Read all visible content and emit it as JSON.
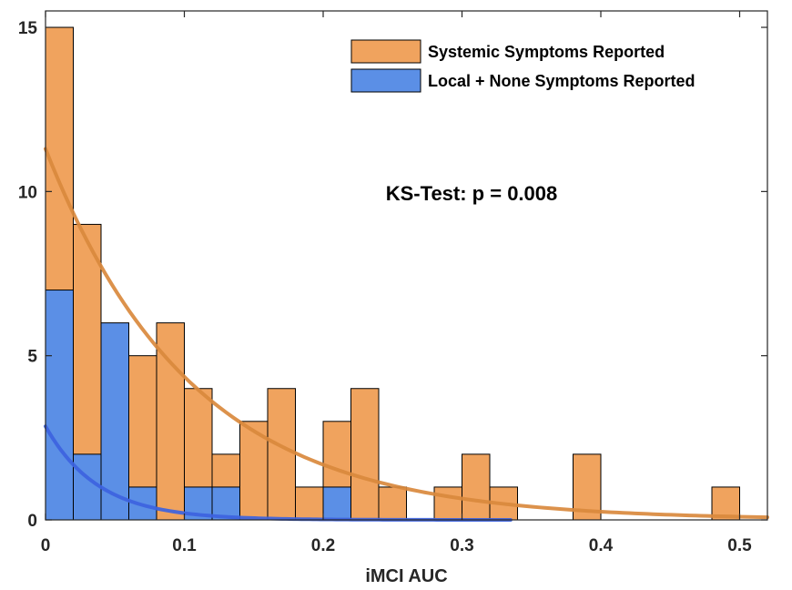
{
  "chart_data": {
    "type": "bar",
    "title": "",
    "xlabel": "iMCI AUC",
    "ylabel": "",
    "xlim": [
      0,
      0.52
    ],
    "ylim": [
      0,
      15.5
    ],
    "x_ticks": [
      "0",
      "0.1",
      "0.2",
      "0.3",
      "0.4",
      "0.5"
    ],
    "y_ticks": [
      "0",
      "5",
      "10",
      "15"
    ],
    "bin_width": 0.02,
    "bin_edges_start": [
      0,
      0.02,
      0.04,
      0.06,
      0.08,
      0.1,
      0.12,
      0.14,
      0.16,
      0.18,
      0.2,
      0.22,
      0.24,
      0.26,
      0.28,
      0.3,
      0.32,
      0.34,
      0.36,
      0.38,
      0.4,
      0.42,
      0.44,
      0.46,
      0.48,
      0.5
    ],
    "series": [
      {
        "name": "Systemic Symptoms Reported",
        "color": "#f0a35e",
        "values": [
          15,
          9,
          0,
          5,
          6,
          4,
          2,
          3,
          4,
          1,
          3,
          4,
          1,
          0,
          1,
          2,
          1,
          0,
          0,
          2,
          0,
          0,
          0,
          0,
          1,
          0
        ],
        "fit": {
          "type": "exponential",
          "amplitude": 11.3,
          "scale": 0.105,
          "x_range": [
            0,
            0.52
          ],
          "color": "#d9893d"
        }
      },
      {
        "name": "Local + None Symptoms Reported",
        "color": "#5b8fe6",
        "values": [
          7,
          2,
          6,
          1,
          0,
          1,
          1,
          0,
          0,
          0,
          1,
          0,
          0,
          0,
          0,
          0,
          0,
          0,
          0,
          0,
          0,
          0,
          0,
          0,
          0,
          0
        ],
        "fit": {
          "type": "exponential",
          "amplitude": 2.85,
          "scale": 0.038,
          "x_range": [
            0,
            0.335
          ],
          "color": "#3d63e0"
        }
      }
    ],
    "legend": {
      "placement": "top-right",
      "entries": [
        "Systemic Symptoms Reported",
        "Local + None Symptoms Reported"
      ]
    },
    "annotation": "KS-Test: p = 0.008",
    "grid": false
  }
}
